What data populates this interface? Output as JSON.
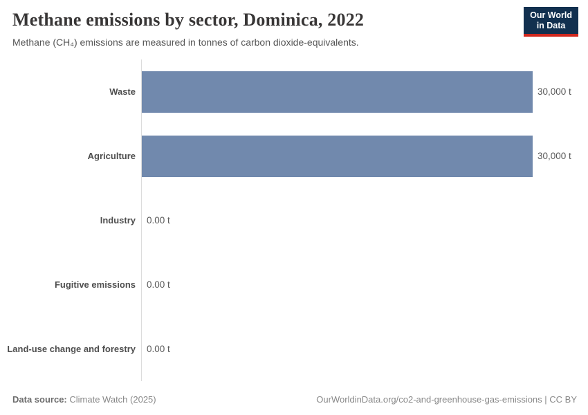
{
  "header": {
    "title": "Methane emissions by sector, Dominica, 2022",
    "subtitle": "Methane (CH₄) emissions are measured in tonnes of carbon dioxide-equivalents.",
    "logo_line1": "Our World",
    "logo_line2": "in Data"
  },
  "chart_data": {
    "type": "bar",
    "orientation": "horizontal",
    "title": "Methane emissions by sector, Dominica, 2022",
    "subtitle": "Methane (CH₄) emissions are measured in tonnes of carbon dioxide-equivalents.",
    "categories": [
      "Waste",
      "Agriculture",
      "Industry",
      "Fugitive emissions",
      "Land-use change and forestry"
    ],
    "values": [
      30000,
      30000,
      0,
      0,
      0
    ],
    "value_labels": [
      "30,000 t",
      "30,000 t",
      "0.00 t",
      "0.00 t",
      "0.00 t"
    ],
    "unit": "t",
    "xlim": [
      0,
      30000
    ],
    "bar_color": "#7189ad",
    "axis_line_color": "#dcdcdc",
    "grid": false,
    "legend": "none"
  },
  "footer": {
    "datasource_label": "Data source:",
    "datasource_value": "Climate Watch (2025)",
    "link_text": "OurWorldinData.org/co2-and-greenhouse-gas-emissions | CC BY"
  }
}
